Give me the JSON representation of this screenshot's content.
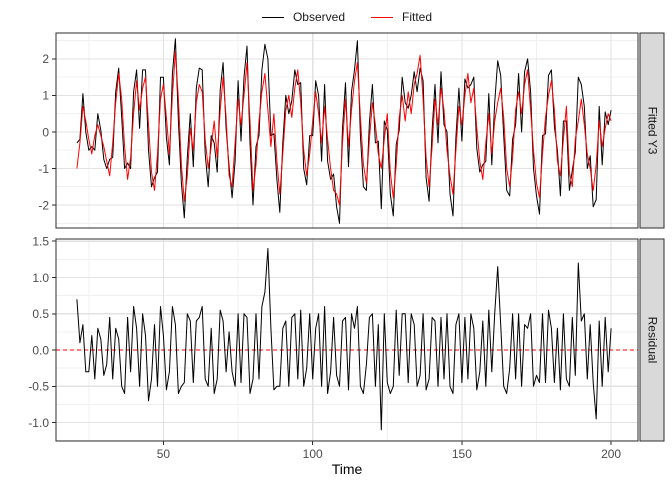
{
  "legend": {
    "items": [
      {
        "label": "Observed",
        "color": "#000000"
      },
      {
        "label": "Fitted",
        "color": "#FF0000"
      }
    ]
  },
  "chart_data": {
    "type": "line",
    "title": "",
    "xlabel": "Time",
    "x_start": 21,
    "x_step": 1,
    "xlim": [
      14,
      209
    ],
    "x_ticks": [
      50,
      100,
      150,
      200
    ],
    "x_tick_labels": [
      "50",
      "100",
      "150",
      "200"
    ],
    "x_minor": [
      25,
      75,
      125,
      175
    ],
    "grid": true,
    "legend_position": "top",
    "colors": {
      "grid_major": "#e2e2e2",
      "grid_minor": "#f0f0f0",
      "panel_border": "#2d2d2d",
      "panel_bg": "#ffffff",
      "strip_fill": "#d9d9d9",
      "strip_text": "#1a1a1a",
      "tick_text": "#4d4d4d",
      "axis_title": "#000000"
    },
    "panels": [
      {
        "strip": "Fitted Y3",
        "ylim": [
          -2.63,
          2.71
        ],
        "y_ticks": [
          -2,
          -1,
          0,
          1,
          2
        ],
        "y_tick_labels": [
          "-2",
          "-1",
          "0",
          "1",
          "2"
        ],
        "y_minor": [
          -2.5,
          -1.5,
          -0.5,
          0.5,
          1.5,
          2.5
        ],
        "series": [
          {
            "name": "Observed",
            "color": "#000000",
            "values": [
              -0.3,
              -0.2,
              1.05,
              0.0,
              -0.5,
              -0.4,
              -0.5,
              0.5,
              0.05,
              -0.75,
              -1.0,
              -0.75,
              -0.7,
              1.1,
              1.75,
              0.4,
              -1.0,
              -0.85,
              -1.0,
              1.1,
              1.7,
              0.1,
              1.7,
              1.7,
              -0.5,
              -1.5,
              -1.25,
              -1.1,
              1.5,
              1.5,
              -0.15,
              -0.9,
              1.6,
              2.55,
              0.3,
              -1.4,
              -2.35,
              -0.7,
              0.5,
              -0.95,
              1.2,
              1.75,
              1.7,
              -0.6,
              -1.5,
              -0.1,
              -0.3,
              -1.1,
              1.15,
              1.9,
              0.1,
              -0.95,
              -1.8,
              -0.8,
              1.4,
              -0.25,
              1.5,
              2.35,
              -0.3,
              -2.0,
              -0.4,
              -0.1,
              1.7,
              2.4,
              2.0,
              -0.1,
              -0.05,
              -1.3,
              -2.2,
              -0.3,
              1.0,
              0.5,
              0.85,
              1.7,
              1.3,
              1.35,
              -1.0,
              -1.45,
              -0.1,
              -0.1,
              1.4,
              1.0,
              -0.8,
              1.3,
              -0.8,
              -1.3,
              -1.15,
              -2.05,
              -2.5,
              0.1,
              1.35,
              -0.95,
              1.1,
              1.7,
              2.5,
              -0.1,
              -1.5,
              -1.6,
              0.25,
              1.3,
              -0.3,
              -0.25,
              -2.1,
              0.3,
              0.05,
              -1.7,
              -2.3,
              -0.35,
              0.05,
              1.5,
              0.8,
              0.65,
              1.0,
              1.65,
              1.1,
              1.75,
              1.4,
              -1.25,
              -1.9,
              0.05,
              1.3,
              -0.3,
              1.65,
              0.2,
              0.0,
              -1.7,
              -2.3,
              -0.15,
              1.2,
              -0.25,
              1.45,
              1.2,
              1.3,
              1.5,
              -0.45,
              -1.1,
              -0.9,
              -0.8,
              1.05,
              -0.9,
              0.8,
              1.95,
              1.55,
              -0.1,
              -1.6,
              -1.75,
              -0.2,
              0.2,
              1.6,
              0.0,
              1.65,
              2.0,
              1.1,
              -1.0,
              -1.75,
              -2.25,
              -0.1,
              -0.05,
              1.55,
              1.7,
              0.15,
              -0.5,
              -1.75,
              0.3,
              0.3,
              -1.6,
              -1.05,
              -0.55,
              1.5,
              1.3,
              0.7,
              -1.0,
              -0.65,
              -2.05,
              -1.85,
              0.7,
              -0.9,
              0.55,
              0.2,
              0.6
            ]
          },
          {
            "name": "Fitted",
            "color": "#FF0000",
            "values": [
              -1.0,
              -0.3,
              0.7,
              0.3,
              -0.2,
              -0.6,
              -0.1,
              0.2,
              -0.1,
              -0.4,
              -0.8,
              -1.2,
              -0.3,
              0.8,
              1.6,
              0.9,
              -0.4,
              -1.3,
              -0.7,
              0.5,
              1.4,
              0.6,
              1.2,
              1.5,
              0.2,
              -1.1,
              -1.6,
              -0.6,
              0.9,
              1.3,
              0.4,
              -0.6,
              1.0,
              2.2,
              0.9,
              -0.9,
              -1.9,
              -1.2,
              0.1,
              -0.5,
              0.8,
              1.3,
              1.1,
              -0.2,
              -1.0,
              -0.4,
              0.3,
              -0.7,
              0.6,
              1.5,
              0.4,
              -1.2,
              -1.5,
              -0.3,
              0.9,
              0.2,
              1.0,
              1.9,
              0.3,
              -1.6,
              -0.9,
              0.3,
              1.1,
              1.6,
              0.6,
              -0.4,
              0.5,
              -0.8,
              -1.7,
              -0.6,
              0.6,
              1.0,
              0.4,
              1.2,
              1.7,
              0.8,
              -0.5,
              -1.2,
              -0.6,
              0.3,
              1.1,
              0.5,
              -0.3,
              0.7,
              -0.2,
              -1.0,
              -1.6,
              -1.7,
              -2.0,
              -0.3,
              0.9,
              -0.4,
              0.6,
              1.4,
              1.9,
              0.4,
              -0.9,
              -1.4,
              -0.2,
              0.8,
              0.2,
              -0.6,
              -1.0,
              -0.2,
              0.5,
              -1.1,
              -1.8,
              -0.9,
              0.4,
              1.0,
              0.3,
              1.1,
              0.5,
              1.3,
              1.6,
              2.1,
              0.9,
              -0.7,
              -1.5,
              -0.4,
              0.9,
              0.2,
              1.2,
              0.6,
              -0.5,
              -1.2,
              -1.7,
              -0.5,
              0.7,
              0.2,
              1.0,
              1.6,
              0.8,
              1.2,
              0.1,
              -0.8,
              -1.3,
              -0.3,
              0.5,
              -0.6,
              0.3,
              0.8,
              1.2,
              0.4,
              -1.0,
              -1.5,
              -0.7,
              0.6,
              1.1,
              0.5,
              1.3,
              1.7,
              0.6,
              -0.5,
              -1.4,
              -1.8,
              -0.6,
              0.4,
              1.0,
              1.4,
              0.6,
              -0.8,
              -1.2,
              -0.2,
              0.7,
              -1.1,
              -1.5,
              -0.2,
              0.3,
              0.9,
              0.2,
              -0.6,
              -1.0,
              -1.6,
              -0.9,
              0.3,
              -0.4,
              0.1,
              0.5,
              0.3
            ]
          }
        ]
      },
      {
        "strip": "Residual",
        "ylim": [
          -1.255,
          1.531
        ],
        "y_ticks": [
          -1.0,
          -0.5,
          0.0,
          0.5,
          1.0,
          1.5
        ],
        "y_tick_labels": [
          "-1.0",
          "-0.5",
          "0.0",
          "0.5",
          "1.0",
          "1.5"
        ],
        "y_minor": [
          -1.25,
          -0.75,
          -0.25,
          0.25,
          0.75,
          1.25
        ],
        "ref_line": {
          "y": 0,
          "color": "#FF0000",
          "dashed": true
        },
        "series": [
          {
            "name": "Residual",
            "color": "#000000",
            "values": [
              0.7,
              0.1,
              0.35,
              -0.3,
              -0.3,
              0.2,
              -0.4,
              0.3,
              0.15,
              -0.35,
              -0.2,
              0.45,
              -0.4,
              0.3,
              0.15,
              -0.5,
              -0.6,
              0.45,
              -0.3,
              0.6,
              0.3,
              -0.5,
              0.5,
              0.2,
              -0.7,
              -0.4,
              0.35,
              -0.5,
              0.6,
              0.2,
              -0.55,
              -0.3,
              0.6,
              0.35,
              -0.6,
              -0.5,
              -0.45,
              0.5,
              0.4,
              -0.45,
              0.4,
              0.45,
              0.6,
              -0.4,
              -0.5,
              0.3,
              -0.6,
              -0.4,
              0.55,
              0.4,
              -0.3,
              0.25,
              -0.3,
              -0.5,
              0.5,
              -0.45,
              0.5,
              0.45,
              -0.6,
              -0.4,
              0.5,
              -0.4,
              0.6,
              0.8,
              1.4,
              0.3,
              -0.55,
              -0.5,
              -0.5,
              0.3,
              0.4,
              -0.5,
              0.45,
              0.5,
              -0.4,
              0.55,
              -0.5,
              -0.25,
              0.5,
              -0.4,
              0.3,
              0.5,
              -0.5,
              0.6,
              -0.6,
              -0.3,
              0.45,
              -0.35,
              -0.5,
              0.4,
              0.45,
              -0.55,
              0.5,
              0.3,
              0.6,
              -0.5,
              -0.6,
              -0.2,
              0.45,
              0.5,
              -0.5,
              0.35,
              -1.1,
              0.5,
              -0.45,
              -0.6,
              -0.5,
              0.55,
              -0.35,
              0.5,
              0.5,
              -0.45,
              0.5,
              0.35,
              -0.5,
              -0.35,
              0.5,
              -0.55,
              -0.4,
              0.45,
              0.4,
              -0.5,
              0.45,
              -0.4,
              0.5,
              -0.5,
              -0.6,
              0.35,
              0.5,
              -0.45,
              0.45,
              -0.4,
              0.5,
              0.3,
              -0.55,
              -0.3,
              0.4,
              -0.5,
              0.55,
              -0.3,
              0.5,
              1.15,
              0.35,
              -0.5,
              -0.6,
              -0.25,
              0.5,
              -0.4,
              0.5,
              -0.5,
              0.35,
              0.3,
              0.5,
              -0.5,
              -0.35,
              -0.45,
              0.5,
              -0.45,
              0.55,
              0.3,
              -0.45,
              0.3,
              -0.55,
              0.5,
              -0.4,
              -0.5,
              0.45,
              -0.35,
              1.2,
              0.4,
              0.5,
              -0.4,
              0.35,
              -0.45,
              -0.95,
              0.4,
              -0.5,
              0.45,
              -0.3,
              0.3
            ]
          }
        ]
      }
    ]
  }
}
